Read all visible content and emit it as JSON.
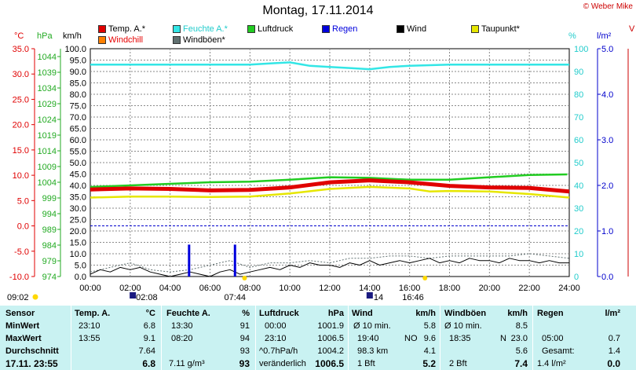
{
  "page": {
    "title": "Montag, 17.11.2014",
    "copyright": "© Weber Mike"
  },
  "axes": {
    "temp_unit": "°C",
    "pressure_unit": "hPa",
    "wind_unit": "km/h",
    "humidity_unit": "%",
    "rain_unit": "l/m²",
    "corner_mark": "V"
  },
  "legend": [
    {
      "label": "Temp. A.*",
      "color": "#e00000"
    },
    {
      "label": "Feuchte A.*",
      "color": "#33e6e6"
    },
    {
      "label": "Luftdruck",
      "color": "#22cc22"
    },
    {
      "label": "Regen",
      "color": "#0000dd"
    },
    {
      "label": "Wind",
      "color": "#000000"
    },
    {
      "label": "Taupunkt*",
      "color": "#e6e600"
    },
    {
      "label": "Windchill",
      "color": "#ff8000"
    },
    {
      "label": "Windböen*",
      "color": "#607070"
    }
  ],
  "sun": {
    "sunrise": "07:44",
    "sunset": "16:46",
    "moonrise": "02:08",
    "moonset": "14",
    "left_time": "09:02"
  },
  "chart_data": {
    "type": "line",
    "title": "Montag, 17.11.2014",
    "x_ticks": [
      "00:00",
      "02:00",
      "04:00",
      "06:00",
      "08:00",
      "10:00",
      "12:00",
      "14:00",
      "16:00",
      "18:00",
      "20:00",
      "22:00",
      "24:00"
    ],
    "xlim": [
      0,
      24
    ],
    "wind_ticks": [
      "0.0",
      "5.0",
      "10.0",
      "15.0",
      "20.0",
      "25.0",
      "30.0",
      "35.0",
      "40.0",
      "45.0",
      "50.0",
      "55.0",
      "60.0",
      "65.0",
      "70.0",
      "75.0",
      "80.0",
      "85.0",
      "90.0",
      "95.0",
      "100.0"
    ],
    "pressure_ticks": [
      "974",
      "979",
      "984",
      "989",
      "994",
      "999",
      "1004",
      "1009",
      "1014",
      "1019",
      "1024",
      "1029",
      "1034",
      "1039",
      "1044"
    ],
    "temp_ticks": [
      "-10.0",
      "-5.0",
      "0.0",
      "5.0",
      "10.0",
      "15.0",
      "20.0",
      "25.0",
      "30.0",
      "35.0"
    ],
    "humidity_ticks": [
      "0",
      "10",
      "20",
      "30",
      "40",
      "50",
      "60",
      "70",
      "80",
      "90",
      "100"
    ],
    "rain_ticks": [
      "0.0",
      "1.0",
      "2.0",
      "3.0",
      "4.0",
      "5.0"
    ],
    "ylim_wind": [
      0,
      100
    ],
    "ylim_pressure": [
      974,
      1046.5
    ],
    "ylim_temp": [
      -10,
      35
    ],
    "ylim_humidity": [
      0,
      100
    ],
    "ylim_rain": [
      0,
      5
    ],
    "series": [
      {
        "name": "Feuchte A.*",
        "axis": "humidity",
        "color": "#33e6e6",
        "x": [
          0,
          2,
          4,
          6,
          8,
          9,
          10,
          11,
          12,
          13,
          14,
          15,
          16,
          18,
          20,
          22,
          24
        ],
        "values": [
          93,
          93,
          93,
          93,
          93,
          93.5,
          94,
          92.5,
          92,
          91.5,
          91,
          92,
          92.5,
          93,
          93,
          93,
          93
        ]
      },
      {
        "name": "Luftdruck",
        "axis": "pressure",
        "color": "#22cc22",
        "x": [
          0,
          2,
          4,
          6,
          8,
          10,
          12,
          14,
          16,
          18,
          20,
          22,
          23.9
        ],
        "values": [
          1002.5,
          1003.0,
          1003.5,
          1004.0,
          1004.2,
          1004.8,
          1005.6,
          1005.4,
          1004.8,
          1004.8,
          1005.6,
          1006.3,
          1006.5
        ]
      },
      {
        "name": "Taupunkt*",
        "axis": "temp",
        "color": "#e6e600",
        "x": [
          0,
          2,
          4,
          6,
          8,
          10,
          12,
          14,
          16,
          17,
          18,
          20,
          22,
          24
        ],
        "values": [
          5.6,
          5.8,
          5.8,
          5.7,
          5.8,
          6.4,
          7.3,
          7.7,
          7.4,
          6.8,
          6.9,
          6.8,
          6.3,
          5.6
        ]
      },
      {
        "name": "Temp. A.*",
        "axis": "temp",
        "color": "#e00000",
        "x": [
          0,
          2,
          4,
          6,
          8,
          10,
          12,
          14,
          16,
          18,
          20,
          22,
          24
        ],
        "values": [
          7.2,
          7.4,
          7.3,
          7.0,
          7.1,
          7.6,
          8.6,
          9.0,
          8.6,
          7.9,
          7.6,
          7.5,
          6.8
        ]
      },
      {
        "name": "Windböen*",
        "axis": "wind",
        "color": "#607070",
        "x": [
          0,
          1,
          2,
          3,
          4,
          5,
          6,
          7,
          8,
          9,
          10,
          11,
          12,
          13,
          14,
          15,
          16,
          17,
          18,
          19,
          20,
          21,
          22,
          23,
          24
        ],
        "values": [
          2,
          4,
          6,
          3,
          2,
          3,
          5,
          7,
          4,
          6,
          6,
          7,
          6,
          8,
          8,
          9,
          9,
          8,
          9,
          9,
          9,
          9,
          10,
          9,
          8
        ]
      },
      {
        "name": "Wind",
        "axis": "wind",
        "color": "#000000",
        "x": [
          0,
          0.5,
          1,
          1.5,
          2,
          2.5,
          3,
          3.5,
          4,
          4.5,
          5,
          5.5,
          6,
          6.5,
          7,
          7.5,
          8,
          8.5,
          9,
          9.5,
          10,
          10.5,
          11,
          11.5,
          12,
          12.5,
          13,
          13.5,
          14,
          14.5,
          15,
          15.5,
          16,
          16.5,
          17,
          17.5,
          18,
          18.5,
          19,
          19.5,
          20,
          20.5,
          21,
          21.5,
          22,
          22.5,
          23,
          23.5,
          24
        ],
        "values": [
          1,
          3,
          2,
          4,
          3,
          4,
          2,
          1,
          0,
          1,
          2,
          1,
          0,
          2,
          3,
          1,
          2,
          3,
          4,
          3,
          5,
          4,
          6,
          5,
          5,
          4,
          6,
          5,
          7,
          5,
          6,
          7,
          6,
          7,
          8,
          6,
          7,
          6,
          8,
          7,
          7,
          6,
          8,
          7,
          7,
          6,
          7,
          6,
          6
        ]
      },
      {
        "name": "Regen",
        "axis": "rain",
        "color": "#0000dd",
        "type": "bar",
        "x": [
          4.95,
          7.25
        ],
        "values": [
          0.7,
          0.7
        ]
      }
    ]
  },
  "table": {
    "headers": [
      "Sensor",
      "Temp. A.",
      "°C",
      "Feuchte A.",
      "%",
      "Luftdruck",
      "hPa",
      "Wind",
      "km/h",
      "Windböen",
      "km/h",
      "Regen",
      "l/m²"
    ],
    "rows": [
      {
        "label": "MinWert",
        "temp_time": "23:10",
        "temp": "6.8",
        "hum_time": "13:30",
        "hum": "91",
        "press_time": "00:00",
        "press": "1001.9",
        "wind_a": "Ø 10 min.",
        "wind_b": "",
        "wind_v": "5.8",
        "gust_a": "Ø 10 min.",
        "gust_b": "",
        "gust_v": "8.5",
        "rain_a": "",
        "rain_v": ""
      },
      {
        "label": "MaxWert",
        "temp_time": "13:55",
        "temp": "9.1",
        "hum_time": "08:20",
        "hum": "94",
        "press_time": "23:10",
        "press": "1006.5",
        "wind_a": "19:40",
        "wind_b": "NO",
        "wind_v": "9.6",
        "gust_a": "18:35",
        "gust_b": "N",
        "gust_v": "23.0",
        "rain_a": "05:00",
        "rain_v": "0.7"
      },
      {
        "label": "Durchschnitt",
        "temp_time": "",
        "temp": "7.64",
        "hum_time": "",
        "hum": "93",
        "press_time": "^0.7hPa/h",
        "press": "1004.2",
        "wind_a": "98.3 km",
        "wind_b": "",
        "wind_v": "4.1",
        "gust_a": "",
        "gust_b": "",
        "gust_v": "5.6",
        "rain_a": "Gesamt:",
        "rain_v": "1.4"
      },
      {
        "label": "17.11. 23:55",
        "temp_time": "",
        "temp": "6.8",
        "hum_time": "7.11 g/m³",
        "hum": "93",
        "press_time": "veränderlich",
        "press": "1006.5",
        "wind_a": "1 Bft",
        "wind_b": "",
        "wind_v": "5.2",
        "gust_a": "2 Bft",
        "gust_b": "",
        "gust_v": "7.4",
        "rain_a": "1.4 l/m²",
        "rain_v": "0.0"
      }
    ]
  }
}
